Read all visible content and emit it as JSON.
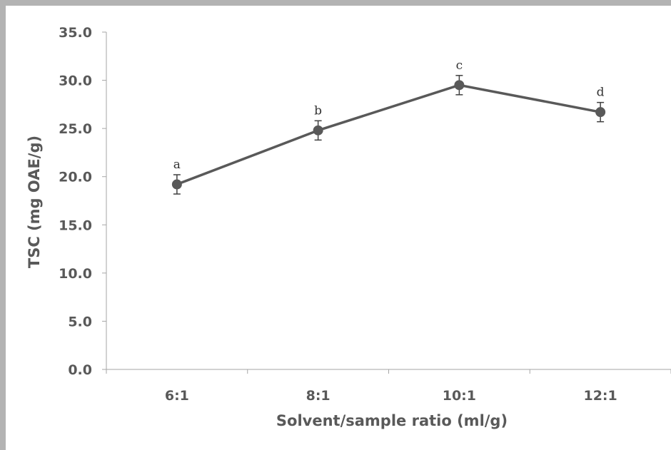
{
  "chart_data": {
    "type": "line",
    "categories": [
      "6:1",
      "8:1",
      "10:1",
      "12:1"
    ],
    "series": [
      {
        "values": [
          19.2,
          24.8,
          29.5,
          26.7
        ],
        "errors": [
          1.0,
          1.0,
          1.0,
          1.0
        ],
        "labels": [
          "a",
          "b",
          "c",
          "d"
        ],
        "color": "#595959"
      }
    ],
    "ylim": [
      0,
      35
    ],
    "yticks": [
      "0.0",
      "5.0",
      "10.0",
      "15.0",
      "20.0",
      "25.0",
      "30.0",
      "35.0"
    ],
    "xlabel": "Solvent/sample ratio (ml/g)",
    "ylabel": "TSC (mg OAE/g)",
    "grid": false,
    "legend": false
  }
}
